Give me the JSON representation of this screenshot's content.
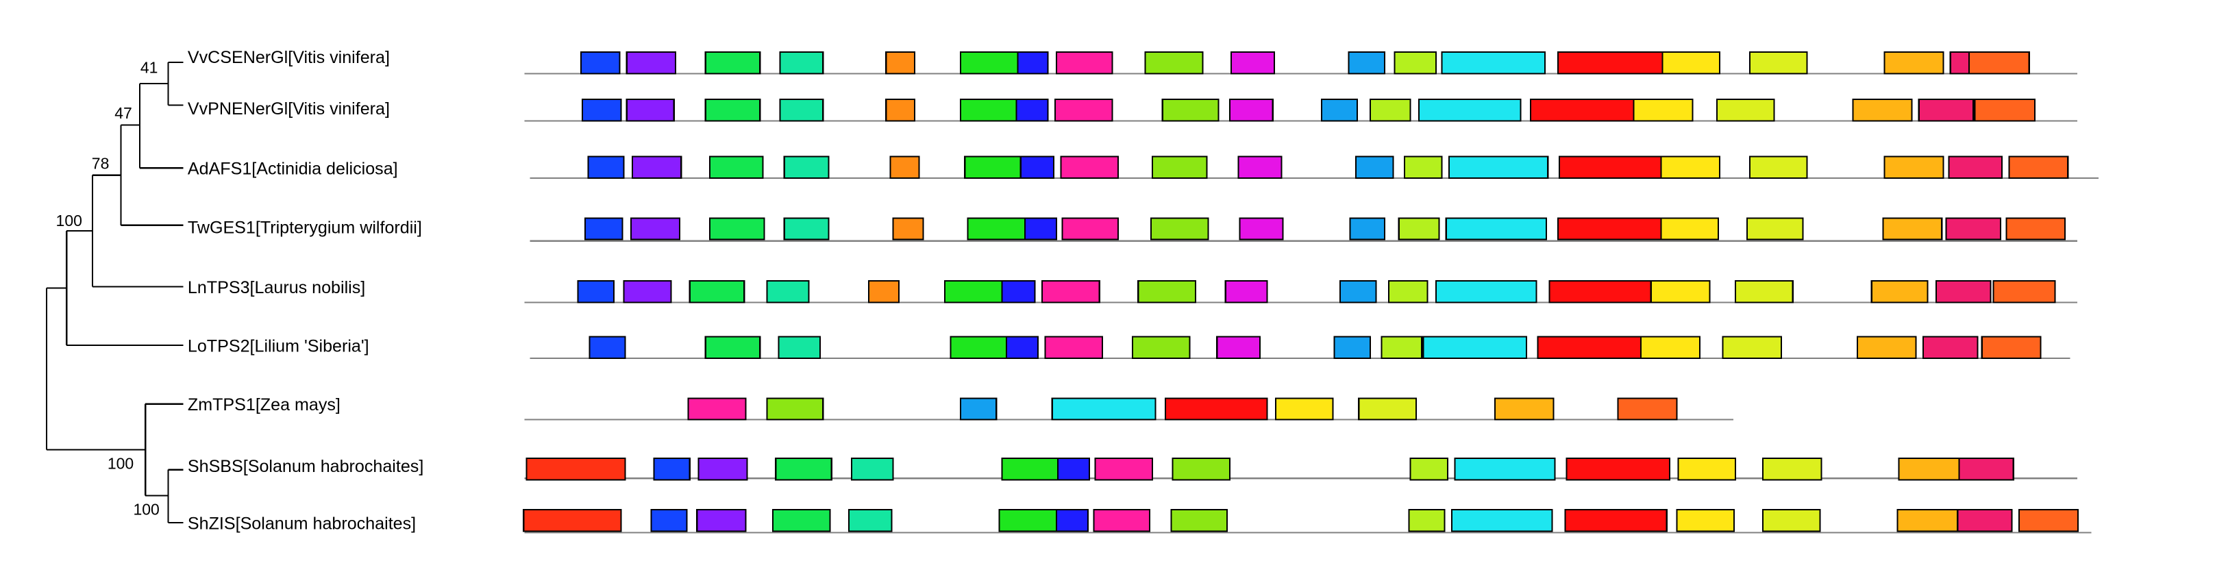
{
  "palette": {
    "blue": "#1446ff",
    "violet": "#8a1eff",
    "green": "#14e650",
    "teal": "#14e6a0",
    "orange": "#ff8c14",
    "green2": "#1ee61e",
    "blue2": "#1e1eff",
    "magenta": "#ff1ea0",
    "lime": "#8ce614",
    "purple": "#e614e6",
    "skyblue": "#14a0f0",
    "yellowgreen": "#b4f01e",
    "cyan": "#1ee6f0",
    "red": "#ff0f0f",
    "yellow": "#ffe614",
    "olive": "#dcf01e",
    "amber": "#ffb414",
    "crimson": "#f01e6e",
    "darkorange": "#ff641e",
    "redorange": "#ff3214"
  },
  "tree": {
    "taxa": [
      "VvCSENerGl[Vitis vinifera]",
      "VvPNENerGl[Vitis vinifera]",
      "AdAFS1[Actinidia deliciosa]",
      "TwGES1[Tripterygium wilfordii]",
      "LnTPS3[Laurus nobilis]",
      "LoTPS2[Lilium 'Siberia']",
      "ZmTPS1[Zea mays]",
      "ShSBS[Solanum habrochaites]",
      "ShZIS[Solanum habrochaites]"
    ],
    "bootstrap": [
      "41",
      "47",
      "78",
      "100",
      "100",
      "100"
    ]
  },
  "motif_rows": [
    [
      [
        "blue",
        405,
        432
      ],
      [
        "violet",
        437,
        471
      ],
      [
        "green",
        492,
        530
      ],
      [
        "teal",
        544,
        574
      ],
      [
        "orange",
        618,
        638
      ],
      [
        "green2",
        670,
        710
      ],
      [
        "blue2",
        710,
        731
      ],
      [
        "magenta",
        737,
        776
      ],
      [
        "lime",
        799,
        839
      ],
      [
        "purple",
        859,
        889
      ],
      [
        "skyblue",
        941,
        966
      ],
      [
        "yellowgreen",
        973,
        1002
      ],
      [
        "cyan",
        1006,
        1078
      ],
      [
        "red",
        1087,
        1160
      ],
      [
        "yellow",
        1160,
        1200
      ],
      [
        "olive",
        1221,
        1261
      ],
      [
        "amber",
        1315,
        1356
      ],
      [
        "crimson",
        1361,
        1400
      ],
      [
        "darkorange",
        1374,
        1416
      ]
    ],
    [
      [
        "blue",
        406,
        433
      ],
      [
        "violet",
        437,
        470
      ],
      [
        "green",
        492,
        530
      ],
      [
        "teal",
        544,
        574
      ],
      [
        "orange",
        618,
        638
      ],
      [
        "green2",
        670,
        709
      ],
      [
        "blue2",
        709,
        731
      ],
      [
        "magenta",
        736,
        776
      ],
      [
        "lime",
        811,
        850
      ],
      [
        "purple",
        858,
        888
      ],
      [
        "skyblue",
        922,
        947
      ],
      [
        "yellowgreen",
        956,
        984
      ],
      [
        "cyan",
        990,
        1061
      ],
      [
        "red",
        1068,
        1140
      ],
      [
        "yellow",
        1140,
        1181
      ],
      [
        "olive",
        1198,
        1238
      ],
      [
        "amber",
        1293,
        1334
      ],
      [
        "crimson",
        1339,
        1377
      ],
      [
        "darkorange",
        1378,
        1420
      ]
    ],
    [
      [
        "blue",
        410,
        435
      ],
      [
        "violet",
        441,
        475
      ],
      [
        "green",
        495,
        532
      ],
      [
        "teal",
        547,
        578
      ],
      [
        "orange",
        621,
        641
      ],
      [
        "green2",
        673,
        712
      ],
      [
        "blue2",
        712,
        735
      ],
      [
        "magenta",
        740,
        780
      ],
      [
        "lime",
        804,
        842
      ],
      [
        "purple",
        864,
        894
      ],
      [
        "skyblue",
        946,
        972
      ],
      [
        "yellowgreen",
        980,
        1006
      ],
      [
        "cyan",
        1011,
        1080
      ],
      [
        "red",
        1088,
        1159
      ],
      [
        "yellow",
        1159,
        1200
      ],
      [
        "olive",
        1221,
        1261
      ],
      [
        "amber",
        1315,
        1356
      ],
      [
        "crimson",
        1360,
        1397
      ],
      [
        "darkorange",
        1402,
        1443
      ]
    ],
    [
      [
        "blue",
        408,
        434
      ],
      [
        "violet",
        440,
        474
      ],
      [
        "green",
        495,
        533
      ],
      [
        "teal",
        547,
        578
      ],
      [
        "orange",
        623,
        644
      ],
      [
        "green2",
        675,
        715
      ],
      [
        "blue2",
        715,
        737
      ],
      [
        "magenta",
        741,
        780
      ],
      [
        "lime",
        803,
        843
      ],
      [
        "purple",
        865,
        895
      ],
      [
        "skyblue",
        942,
        966
      ],
      [
        "yellowgreen",
        976,
        1004
      ],
      [
        "cyan",
        1009,
        1079
      ],
      [
        "red",
        1087,
        1159
      ],
      [
        "yellow",
        1159,
        1199
      ],
      [
        "olive",
        1219,
        1258
      ],
      [
        "amber",
        1314,
        1355
      ],
      [
        "crimson",
        1358,
        1396
      ],
      [
        "darkorange",
        1400,
        1441
      ]
    ],
    [
      [
        "blue",
        403,
        428
      ],
      [
        "violet",
        435,
        468
      ],
      [
        "green",
        481,
        519
      ],
      [
        "teal",
        535,
        564
      ],
      [
        "orange",
        606,
        627
      ],
      [
        "green2",
        659,
        699
      ],
      [
        "blue2",
        699,
        722
      ],
      [
        "magenta",
        727,
        767
      ],
      [
        "lime",
        794,
        834
      ],
      [
        "purple",
        855,
        884
      ],
      [
        "skyblue",
        935,
        960
      ],
      [
        "yellowgreen",
        969,
        996
      ],
      [
        "cyan",
        1002,
        1072
      ],
      [
        "red",
        1081,
        1152
      ],
      [
        "yellow",
        1152,
        1193
      ],
      [
        "olive",
        1211,
        1251
      ],
      [
        "amber",
        1306,
        1345
      ],
      [
        "crimson",
        1351,
        1389
      ],
      [
        "darkorange",
        1391,
        1434
      ]
    ],
    [
      [
        "blue",
        411,
        436
      ],
      [
        "green",
        492,
        530
      ],
      [
        "teal",
        543,
        572
      ],
      [
        "green2",
        663,
        702
      ],
      [
        "blue2",
        702,
        724
      ],
      [
        "magenta",
        729,
        769
      ],
      [
        "lime",
        790,
        830
      ],
      [
        "purple",
        849,
        879
      ],
      [
        "skyblue",
        931,
        956
      ],
      [
        "yellowgreen",
        964,
        992
      ],
      [
        "cyan",
        993,
        1065
      ],
      [
        "red",
        1073,
        1145
      ],
      [
        "yellow",
        1145,
        1186
      ],
      [
        "olive",
        1202,
        1243
      ],
      [
        "amber",
        1296,
        1337
      ],
      [
        "crimson",
        1342,
        1380
      ],
      [
        "darkorange",
        1383,
        1424
      ]
    ],
    [
      [
        "magenta",
        480,
        520
      ],
      [
        "lime",
        535,
        574
      ],
      [
        "skyblue",
        670,
        695
      ],
      [
        "cyan",
        734,
        806
      ],
      [
        "red",
        813,
        884
      ],
      [
        "yellow",
        890,
        930
      ],
      [
        "olive",
        948,
        988
      ],
      [
        "amber",
        1043,
        1084
      ],
      [
        "darkorange",
        1129,
        1170
      ]
    ],
    [
      [
        "redorange",
        367,
        436
      ],
      [
        "blue",
        456,
        481
      ],
      [
        "violet",
        487,
        521
      ],
      [
        "green",
        541,
        580
      ],
      [
        "teal",
        594,
        623
      ],
      [
        "green2",
        699,
        738
      ],
      [
        "blue2",
        738,
        760
      ],
      [
        "magenta",
        764,
        804
      ],
      [
        "lime",
        818,
        858
      ],
      [
        "yellowgreen",
        984,
        1010
      ],
      [
        "cyan",
        1015,
        1085
      ],
      [
        "red",
        1093,
        1165
      ],
      [
        "yellow",
        1171,
        1211
      ],
      [
        "olive",
        1230,
        1271
      ],
      [
        "amber",
        1325,
        1367
      ],
      [
        "crimson",
        1367,
        1405
      ]
    ],
    [
      [
        "redorange",
        365,
        433
      ],
      [
        "blue",
        454,
        479
      ],
      [
        "violet",
        486,
        520
      ],
      [
        "green",
        539,
        579
      ],
      [
        "teal",
        592,
        622
      ],
      [
        "green2",
        697,
        737
      ],
      [
        "blue2",
        737,
        759
      ],
      [
        "magenta",
        763,
        802
      ],
      [
        "lime",
        817,
        856
      ],
      [
        "yellowgreen",
        983,
        1008
      ],
      [
        "cyan",
        1013,
        1083
      ],
      [
        "red",
        1092,
        1163
      ],
      [
        "yellow",
        1170,
        1210
      ],
      [
        "olive",
        1230,
        1270
      ],
      [
        "amber",
        1324,
        1366
      ],
      [
        "crimson",
        1366,
        1404
      ],
      [
        "darkorange",
        1409,
        1450
      ]
    ]
  ]
}
